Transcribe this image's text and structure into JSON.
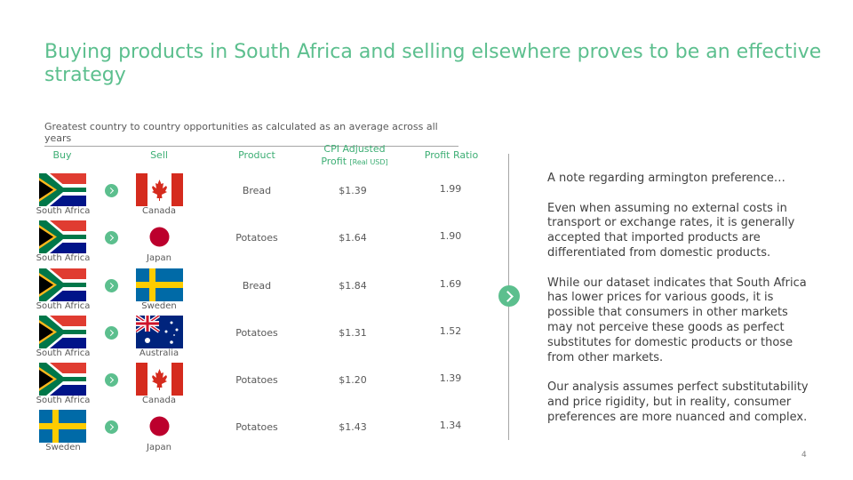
{
  "title": "Buying products in South Africa and selling elsewhere proves to be an effective strategy",
  "subtitle": "Greatest country to country opportunities as calculated as an average across all years",
  "headers": {
    "buy": "Buy",
    "sell": "Sell",
    "product": "Product",
    "profit": "CPI Adjusted Profit",
    "profit_unit": "[Real USD]",
    "ratio": "Profit Ratio"
  },
  "rows": [
    {
      "buy": "South Africa",
      "buy_flag": "south-africa-flag-icon",
      "sell": "Canada",
      "sell_flag": "canada-flag-icon",
      "product": "Bread",
      "profit": "$1.39",
      "ratio": "1.99"
    },
    {
      "buy": "South Africa",
      "buy_flag": "south-africa-flag-icon",
      "sell": "Japan",
      "sell_flag": "japan-flag-icon",
      "product": "Potatoes",
      "profit": "$1.64",
      "ratio": "1.90"
    },
    {
      "buy": "South Africa",
      "buy_flag": "south-africa-flag-icon",
      "sell": "Sweden",
      "sell_flag": "sweden-flag-icon",
      "product": "Bread",
      "profit": "$1.84",
      "ratio": "1.69"
    },
    {
      "buy": "South Africa",
      "buy_flag": "south-africa-flag-icon",
      "sell": "Australia",
      "sell_flag": "australia-flag-icon",
      "product": "Potatoes",
      "profit": "$1.31",
      "ratio": "1.52"
    },
    {
      "buy": "South Africa",
      "buy_flag": "south-africa-flag-icon",
      "sell": "Canada",
      "sell_flag": "canada-flag-icon",
      "product": "Potatoes",
      "profit": "$1.20",
      "ratio": "1.39"
    },
    {
      "buy": "Sweden",
      "buy_flag": "sweden-flag-icon",
      "sell": "Japan",
      "sell_flag": "japan-flag-icon",
      "product": "Potatoes",
      "profit": "$1.43",
      "ratio": "1.34"
    }
  ],
  "note": {
    "heading": "A note regarding armington preference…",
    "p1": "Even when assuming no external costs in transport or exchange rates, it is generally accepted that imported products are differentiated from domestic products.",
    "p2": "While our dataset indicates that South Africa has lower prices for various goods, it is possible that consumers in other markets may not perceive these goods as perfect substitutes for domestic products or those from other markets.",
    "p3": "Our analysis assumes perfect substitutability and price rigidity, but in reality, consumer preferences are more nuanced and complex."
  },
  "page_number": "4",
  "colors": {
    "accent": "#5cbf8e",
    "header_text": "#3dae74"
  }
}
